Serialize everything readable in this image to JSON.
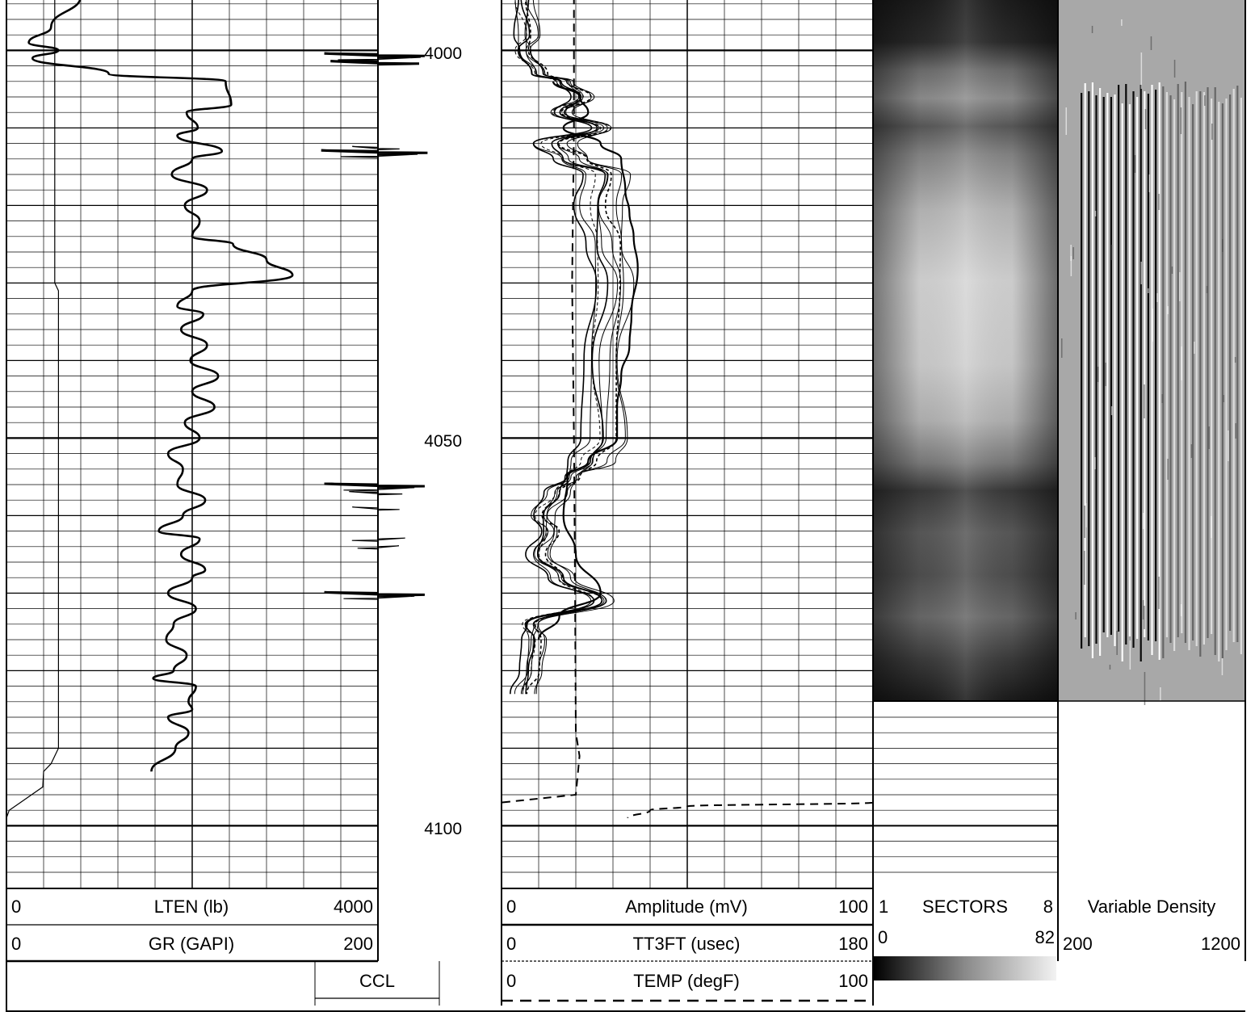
{
  "chart_data": {
    "type": "line",
    "title": "",
    "depth": {
      "ticks": [
        4000,
        4050,
        4100
      ],
      "range": [
        3993,
        4107
      ]
    },
    "tracks": {
      "track1": {
        "curves": [
          {
            "name": "LTEN",
            "label": "LTEN (lb)",
            "min": "0",
            "max": "4000",
            "style": "thin solid",
            "points": [
              [
                3993,
                520
              ],
              [
                4030,
                520
              ],
              [
                4031,
                560
              ],
              [
                4090,
                560
              ],
              [
                4092,
                480
              ],
              [
                4093,
                400
              ],
              [
                4095,
                390
              ],
              [
                4097,
                150
              ],
              [
                4098,
                30
              ],
              [
                4099,
                0
              ]
            ]
          },
          {
            "name": "GR",
            "label": "GR (GAPI)",
            "min": "0",
            "max": "200",
            "style": "thick solid",
            "points": [
              [
                3993,
                40
              ],
              [
                3997,
                24
              ],
              [
                3999,
                12
              ],
              [
                4000,
                28
              ],
              [
                4001,
                14
              ],
              [
                4003,
                55
              ],
              [
                4004,
                118
              ],
              [
                4007,
                121
              ],
              [
                4008,
                97
              ],
              [
                4010,
                103
              ],
              [
                4011,
                92
              ],
              [
                4013,
                116
              ],
              [
                4014,
                100
              ],
              [
                4016,
                89
              ],
              [
                4018,
                108
              ],
              [
                4020,
                96
              ],
              [
                4022,
                104
              ],
              [
                4024,
                100
              ],
              [
                4025,
                122
              ],
              [
                4027,
                140
              ],
              [
                4029,
                154
              ],
              [
                4031,
                100
              ],
              [
                4033,
                92
              ],
              [
                4034,
                106
              ],
              [
                4036,
                94
              ],
              [
                4038,
                108
              ],
              [
                4040,
                99
              ],
              [
                4042,
                114
              ],
              [
                4044,
                100
              ],
              [
                4046,
                112
              ],
              [
                4048,
                96
              ],
              [
                4050,
                104
              ],
              [
                4052,
                87
              ],
              [
                4054,
                95
              ],
              [
                4056,
                92
              ],
              [
                4058,
                107
              ],
              [
                4060,
                95
              ],
              [
                4062,
                82
              ],
              [
                4063,
                104
              ],
              [
                4065,
                94
              ],
              [
                4067,
                107
              ],
              [
                4068,
                100
              ],
              [
                4070,
                87
              ],
              [
                4072,
                102
              ],
              [
                4074,
                90
              ],
              [
                4076,
                86
              ],
              [
                4078,
                97
              ],
              [
                4080,
                90
              ],
              [
                4081,
                79
              ],
              [
                4082,
                102
              ],
              [
                4084,
                98
              ],
              [
                4085,
                100
              ],
              [
                4086,
                87
              ],
              [
                4088,
                98
              ],
              [
                4090,
                91
              ],
              [
                4093,
                78
              ]
            ]
          }
        ]
      },
      "ccl": {
        "label": "CCL",
        "spikes": [
          [
            4000.5,
            -0.85
          ],
          [
            4001,
            0.7
          ],
          [
            4001.5,
            -0.75
          ],
          [
            4013,
            -0.9
          ],
          [
            4013.5,
            0.65
          ],
          [
            4012.5,
            -0.4
          ],
          [
            4056,
            -0.85
          ],
          [
            4056.5,
            0.6
          ],
          [
            4057,
            -0.45
          ],
          [
            4059,
            -0.4
          ],
          [
            4063,
            0.45
          ],
          [
            4064,
            0.35
          ],
          [
            4070,
            -0.85
          ],
          [
            4070.5,
            0.6
          ]
        ]
      },
      "track2": {
        "curves": [
          {
            "name": "Amplitude",
            "label": "Amplitude (mV)",
            "min": "0",
            "max": "100",
            "style": "thin solid",
            "points": [
              [
                3993,
                6
              ],
              [
                3998,
                7
              ],
              [
                4000,
                6
              ],
              [
                4003,
                10
              ],
              [
                4004,
                17
              ],
              [
                4006,
                22
              ],
              [
                4008,
                16
              ],
              [
                4010,
                27
              ],
              [
                4012,
                14
              ],
              [
                4014,
                19
              ],
              [
                4016,
                28
              ],
              [
                4020,
                26
              ],
              [
                4025,
                28
              ],
              [
                4030,
                30
              ],
              [
                4040,
                27
              ],
              [
                4050,
                28
              ],
              [
                4053,
                24
              ],
              [
                4055,
                19
              ],
              [
                4057,
                15
              ],
              [
                4060,
                11
              ],
              [
                4062,
                13
              ],
              [
                4065,
                10
              ],
              [
                4068,
                16
              ],
              [
                4071,
                27
              ],
              [
                4074,
                8
              ],
              [
                4076,
                9
              ],
              [
                4080,
                8
              ],
              [
                4083,
                6
              ]
            ]
          },
          {
            "name": "TT3FT",
            "label": "TT3FT (usec)",
            "min": "0",
            "max": "180",
            "style": "thin solid",
            "points": [
              [
                4004,
                25
              ],
              [
                4006,
                38
              ],
              [
                4008,
                42
              ],
              [
                4010,
                30
              ],
              [
                4012,
                48
              ],
              [
                4014,
                58
              ],
              [
                4018,
                60
              ],
              [
                4021,
                62
              ],
              [
                4024,
                64
              ],
              [
                4028,
                66
              ],
              [
                4034,
                63
              ],
              [
                4038,
                62
              ],
              [
                4042,
                58
              ],
              [
                4046,
                56
              ],
              [
                4050,
                56
              ],
              [
                4053,
                42
              ],
              [
                4055,
                32
              ],
              [
                4060,
                30
              ],
              [
                4065,
                36
              ],
              [
                4070,
                48
              ],
              [
                4073,
                28
              ],
              [
                4076,
                18
              ]
            ]
          },
          {
            "name": "TEMP",
            "label": "TEMP (degF)",
            "min": "0",
            "max": "100",
            "style": "dashed",
            "points": [
              [
                3993,
                19.5
              ],
              [
                4003,
                19.5
              ],
              [
                4010,
                19.5
              ],
              [
                4030,
                19
              ],
              [
                4050,
                19.5
              ],
              [
                4070,
                19.8
              ],
              [
                4088,
                20
              ],
              [
                4091,
                21
              ],
              [
                4096,
                20
              ],
              [
                4096.5,
                10
              ],
              [
                4097,
                0
              ]
            ]
          },
          {
            "name": "TEMP-lower",
            "label": "",
            "style": "dashed",
            "points": [
              [
                4097,
                100
              ],
              [
                4097.5,
                50
              ],
              [
                4098,
                40
              ],
              [
                4099,
                34
              ]
            ]
          }
        ]
      },
      "sectors": {
        "label": "SECTORS",
        "min": "1",
        "max": "8",
        "scale_min": "0",
        "scale_max": "82"
      },
      "vdl": {
        "label": "Variable Density",
        "min": "200",
        "max": "1200"
      }
    }
  }
}
